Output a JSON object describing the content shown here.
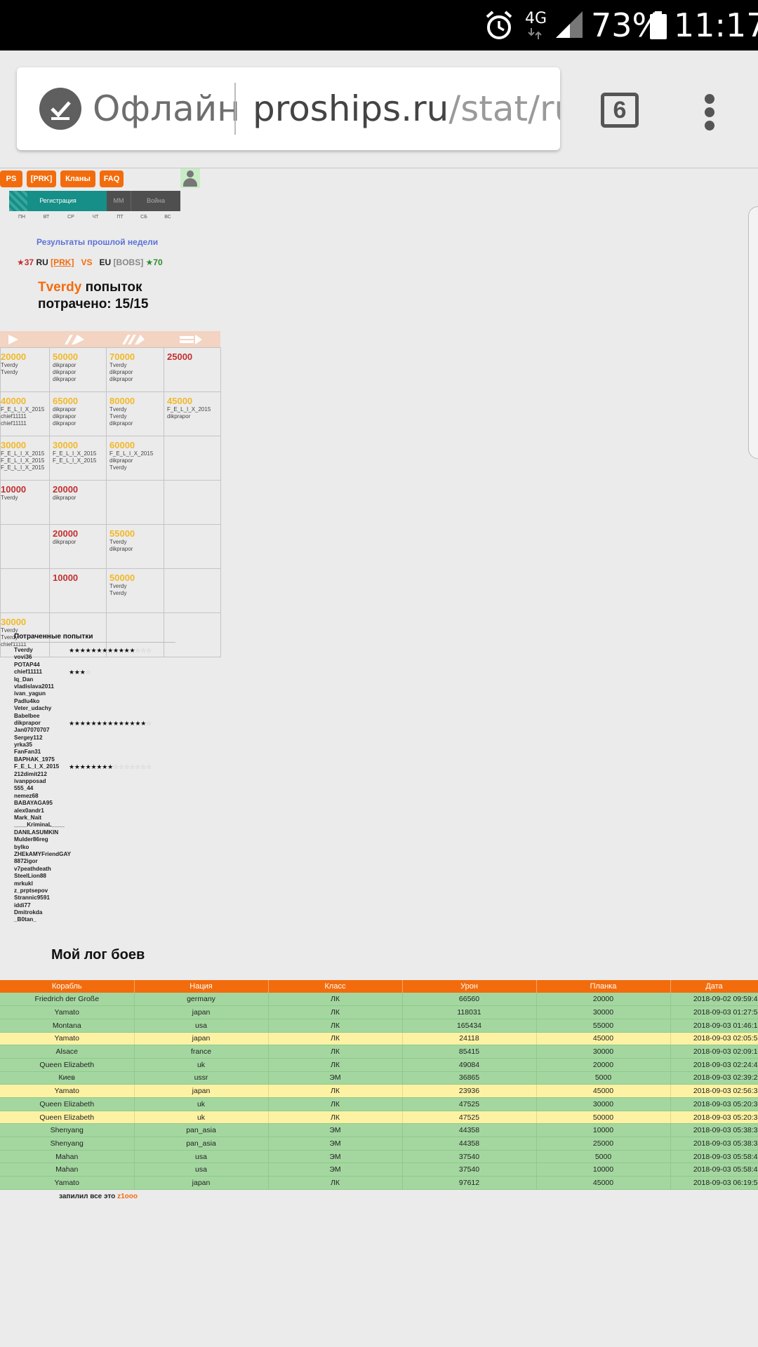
{
  "status_bar": {
    "network": "4G",
    "battery": "73%",
    "time": "11:17"
  },
  "browser": {
    "offline_label": "Офлайн",
    "url_host": "proships.ru",
    "url_path": "/stat/ru/",
    "tab_count": "6"
  },
  "nav": {
    "items": [
      "PS",
      "[PRK]",
      "Кланы",
      "FAQ"
    ]
  },
  "schedule": {
    "registration": "Регистрация",
    "mm": "ММ",
    "war": "Война",
    "days": [
      "ПН",
      "ВТ",
      "СР",
      "ЧТ",
      "ПТ",
      "СБ",
      "ВС"
    ]
  },
  "last_week": "Результаты прошлой недели",
  "matchup": {
    "our_stars": "★37",
    "our_region": "RU",
    "our_clan": "[PRK]",
    "vs": "VS",
    "enemy_region": "EU",
    "enemy_clan": "[BOBS]",
    "enemy_stars": "★70"
  },
  "attempts": {
    "nick": "Tverdy",
    "line1_suffix": " попыток",
    "line2": "потрачено: 15/15"
  },
  "grid": {
    "rows": [
      [
        {
          "pts": "20000",
          "c": "y",
          "names": [
            "Tverdy",
            "Tverdy"
          ]
        },
        {
          "pts": "50000",
          "c": "y",
          "names": [
            "dikprapor",
            "dikprapor",
            "dikprapor"
          ]
        },
        {
          "pts": "70000",
          "c": "y",
          "names": [
            "Tverdy",
            "dikprapor",
            "dikprapor"
          ]
        },
        {
          "pts": "25000",
          "c": "r",
          "names": []
        }
      ],
      [
        {
          "pts": "40000",
          "c": "y",
          "names": [
            "F_E_L_I_X_2015",
            "chief11111",
            "chief11111"
          ]
        },
        {
          "pts": "65000",
          "c": "y",
          "names": [
            "dikprapor",
            "dikprapor",
            "dikprapor"
          ]
        },
        {
          "pts": "80000",
          "c": "y",
          "names": [
            "Tverdy",
            "Tverdy",
            "dikprapor"
          ]
        },
        {
          "pts": "45000",
          "c": "y",
          "names": [
            "F_E_L_I_X_2015",
            "dikprapor"
          ]
        }
      ],
      [
        {
          "pts": "30000",
          "c": "y",
          "names": [
            "F_E_L_I_X_2015",
            "F_E_L_I_X_2015",
            "F_E_L_I_X_2015"
          ]
        },
        {
          "pts": "30000",
          "c": "y",
          "names": [
            "F_E_L_I_X_2015",
            "F_E_L_I_X_2015"
          ]
        },
        {
          "pts": "60000",
          "c": "y",
          "names": [
            "F_E_L_I_X_2015",
            "dikprapor",
            "Tverdy"
          ]
        },
        {
          "pts": "",
          "c": "",
          "names": []
        }
      ],
      [
        {
          "pts": "10000",
          "c": "r",
          "names": [
            "Tverdy"
          ]
        },
        {
          "pts": "20000",
          "c": "r",
          "names": [
            "dikprapor"
          ]
        },
        {
          "pts": "",
          "c": "",
          "names": []
        },
        {
          "pts": "",
          "c": "",
          "names": []
        }
      ],
      [
        {
          "pts": "",
          "c": "",
          "names": []
        },
        {
          "pts": "20000",
          "c": "r",
          "names": [
            "dikprapor"
          ]
        },
        {
          "pts": "55000",
          "c": "y",
          "names": [
            "Tverdy",
            "dikprapor"
          ]
        },
        {
          "pts": "",
          "c": "",
          "names": []
        }
      ],
      [
        {
          "pts": "",
          "c": "",
          "names": []
        },
        {
          "pts": "10000",
          "c": "r",
          "names": []
        },
        {
          "pts": "50000",
          "c": "y",
          "names": [
            "Tverdy",
            "Tverdy"
          ]
        },
        {
          "pts": "",
          "c": "",
          "names": []
        }
      ],
      [
        {
          "pts": "30000",
          "c": "y",
          "names": [
            "Tverdy",
            "Tverdy",
            "chief11111"
          ]
        },
        {
          "pts": "",
          "c": "",
          "names": []
        },
        {
          "pts": "",
          "c": "",
          "names": []
        },
        {
          "pts": "",
          "c": "",
          "names": []
        }
      ]
    ]
  },
  "spent_title": "Потраченные попытки",
  "players": [
    {
      "name": "Tverdy",
      "stars": 12,
      "of": 15
    },
    {
      "name": "vovi36"
    },
    {
      "name": "POTAP44"
    },
    {
      "name": "chief11111",
      "stars": 3,
      "of": 4
    },
    {
      "name": "Iq_Dan"
    },
    {
      "name": "vladislava2011"
    },
    {
      "name": "ivan_yagun"
    },
    {
      "name": "Padlu4ko"
    },
    {
      "name": "Veter_udachy"
    },
    {
      "name": "Babelbee"
    },
    {
      "name": "dikprapor",
      "stars": 14,
      "of": 15
    },
    {
      "name": "Jan07070707"
    },
    {
      "name": "Sergey112"
    },
    {
      "name": "yrka35"
    },
    {
      "name": "FanFan31"
    },
    {
      "name": "BAPHAK_1975"
    },
    {
      "name": "F_E_L_I_X_2015",
      "stars": 8,
      "of": 15
    },
    {
      "name": "212dimit212"
    },
    {
      "name": "ivanpposad"
    },
    {
      "name": "555_44"
    },
    {
      "name": "nemez68"
    },
    {
      "name": "BABAYAGA95"
    },
    {
      "name": "alex0andr1"
    },
    {
      "name": "Mark_Nait"
    },
    {
      "name": "____KriminaL____"
    },
    {
      "name": "DANILASUMKIN"
    },
    {
      "name": "Mulder86reg"
    },
    {
      "name": "bylko"
    },
    {
      "name": "ZHEkAMYFriendGAY"
    },
    {
      "name": "8872igor"
    },
    {
      "name": "v7peathdeath"
    },
    {
      "name": "SteelLion88"
    },
    {
      "name": "mrkukl"
    },
    {
      "name": "z_prptsepov"
    },
    {
      "name": "Strannic9591"
    },
    {
      "name": "iddi77"
    },
    {
      "name": "Dmitrokda"
    },
    {
      "name": "_B0tan_"
    }
  ],
  "log_title": "Мой лог боев",
  "log": {
    "headers": [
      "Корабль",
      "Нация",
      "Класс",
      "Урон",
      "Планка",
      "Дата"
    ],
    "rows": [
      {
        "ship": "Friedrich der Große",
        "nation": "germany",
        "cls": "ЛК",
        "dmg": "66560",
        "bar": "20000",
        "date": "2018-09-02 09:59:4",
        "hl": "g"
      },
      {
        "ship": "Yamato",
        "nation": "japan",
        "cls": "ЛК",
        "dmg": "118031",
        "bar": "30000",
        "date": "2018-09-03 01:27:5",
        "hl": "g"
      },
      {
        "ship": "Montana",
        "nation": "usa",
        "cls": "ЛК",
        "dmg": "165434",
        "bar": "55000",
        "date": "2018-09-03 01:46:1",
        "hl": "g"
      },
      {
        "ship": "Yamato",
        "nation": "japan",
        "cls": "ЛК",
        "dmg": "24118",
        "bar": "45000",
        "date": "2018-09-03 02:05:5",
        "hl": "yl"
      },
      {
        "ship": "Alsace",
        "nation": "france",
        "cls": "ЛК",
        "dmg": "85415",
        "bar": "30000",
        "date": "2018-09-03 02:09:1",
        "hl": "g"
      },
      {
        "ship": "Queen Elizabeth",
        "nation": "uk",
        "cls": "ЛК",
        "dmg": "49084",
        "bar": "20000",
        "date": "2018-09-03 02:24:4",
        "hl": "g"
      },
      {
        "ship": "Киев",
        "nation": "ussr",
        "cls": "ЭМ",
        "dmg": "36865",
        "bar": "5000",
        "date": "2018-09-03 02:39:2",
        "hl": "g"
      },
      {
        "ship": "Yamato",
        "nation": "japan",
        "cls": "ЛК",
        "dmg": "23936",
        "bar": "45000",
        "date": "2018-09-03 02:56:3",
        "hl": "yl"
      },
      {
        "ship": "Queen Elizabeth",
        "nation": "uk",
        "cls": "ЛК",
        "dmg": "47525",
        "bar": "30000",
        "date": "2018-09-03 05:20:3",
        "hl": "g"
      },
      {
        "ship": "Queen Elizabeth",
        "nation": "uk",
        "cls": "ЛК",
        "dmg": "47525",
        "bar": "50000",
        "date": "2018-09-03 05:20:3",
        "hl": "yl"
      },
      {
        "ship": "Shenyang",
        "nation": "pan_asia",
        "cls": "ЭМ",
        "dmg": "44358",
        "bar": "10000",
        "date": "2018-09-03 05:38:3",
        "hl": "g"
      },
      {
        "ship": "Shenyang",
        "nation": "pan_asia",
        "cls": "ЭМ",
        "dmg": "44358",
        "bar": "25000",
        "date": "2018-09-03 05:38:3",
        "hl": "g"
      },
      {
        "ship": "Mahan",
        "nation": "usa",
        "cls": "ЭМ",
        "dmg": "37540",
        "bar": "5000",
        "date": "2018-09-03 05:58:4",
        "hl": "g"
      },
      {
        "ship": "Mahan",
        "nation": "usa",
        "cls": "ЭМ",
        "dmg": "37540",
        "bar": "10000",
        "date": "2018-09-03 05:58:4",
        "hl": "g"
      },
      {
        "ship": "Yamato",
        "nation": "japan",
        "cls": "ЛК",
        "dmg": "97612",
        "bar": "45000",
        "date": "2018-09-03 06:19:5",
        "hl": "g"
      }
    ]
  },
  "credit": {
    "text": "запилил все это ",
    "author": "z1ooo"
  },
  "colors": {
    "accent": "#f26c0d",
    "green_row": "#a4d7a0",
    "yellow_row": "#fdf2a3",
    "teal": "#158f87"
  }
}
